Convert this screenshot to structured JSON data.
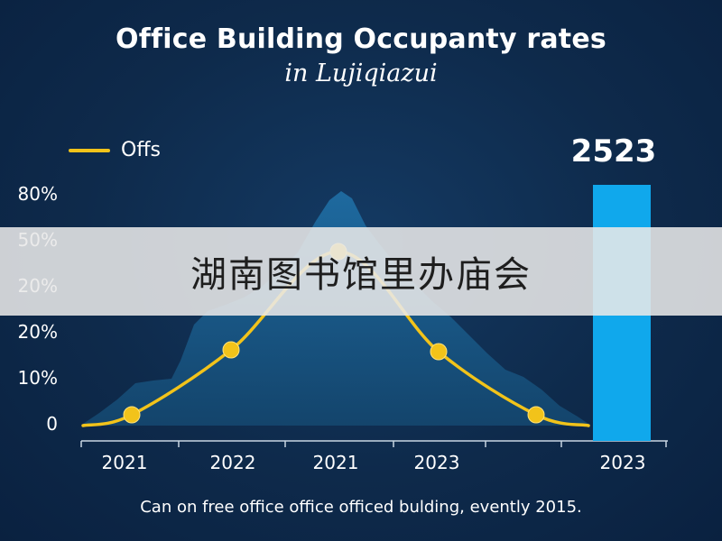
{
  "title": "Office Building Occupanty rates",
  "subtitle": "in Lujiqiazui",
  "legend": {
    "label": "Offs",
    "color": "#f2c31a"
  },
  "highlight": {
    "label": "2523",
    "color": "#10a8ec"
  },
  "footnote": "Can on free office office officed bulding, evently 2015.",
  "banner": {
    "text": "湖南图书馆里办庙会"
  },
  "colors": {
    "background": "#0e2a4b",
    "area": "#1a5f8f",
    "line": "#f2c31a",
    "marker": "#f2c31a"
  },
  "chart_data": {
    "type": "line",
    "y_tick_labels": [
      "0",
      "10%",
      "20%",
      "20%",
      "50%",
      "80%"
    ],
    "x_tick_labels": [
      "2021",
      "2022",
      "2021",
      "2023",
      "2023"
    ],
    "grid": false,
    "legend_position": "top-left",
    "series": [
      {
        "name": "Offs",
        "x": [
          0.0,
          0.1,
          0.32,
          0.55,
          0.78,
          1.0,
          1.22,
          1.45,
          1.75,
          2.05,
          2.4,
          2.73,
          3.0
        ],
        "y": [
          0,
          0.1,
          0.2,
          0.6,
          1.2,
          1.8,
          2.4,
          2.1,
          1.2,
          0.6,
          0.2,
          0.05,
          0
        ],
        "markers": [
          {
            "x": 0.55,
            "y": 0.2
          },
          {
            "x": 1.65,
            "y": 1.6
          },
          {
            "x": 2.7,
            "y": 3.8
          },
          {
            "x": 3.8,
            "y": 1.6
          },
          {
            "x": 4.85,
            "y": 0.2
          }
        ]
      }
    ],
    "highlight_bar": {
      "category": "2023",
      "value": 80
    }
  }
}
